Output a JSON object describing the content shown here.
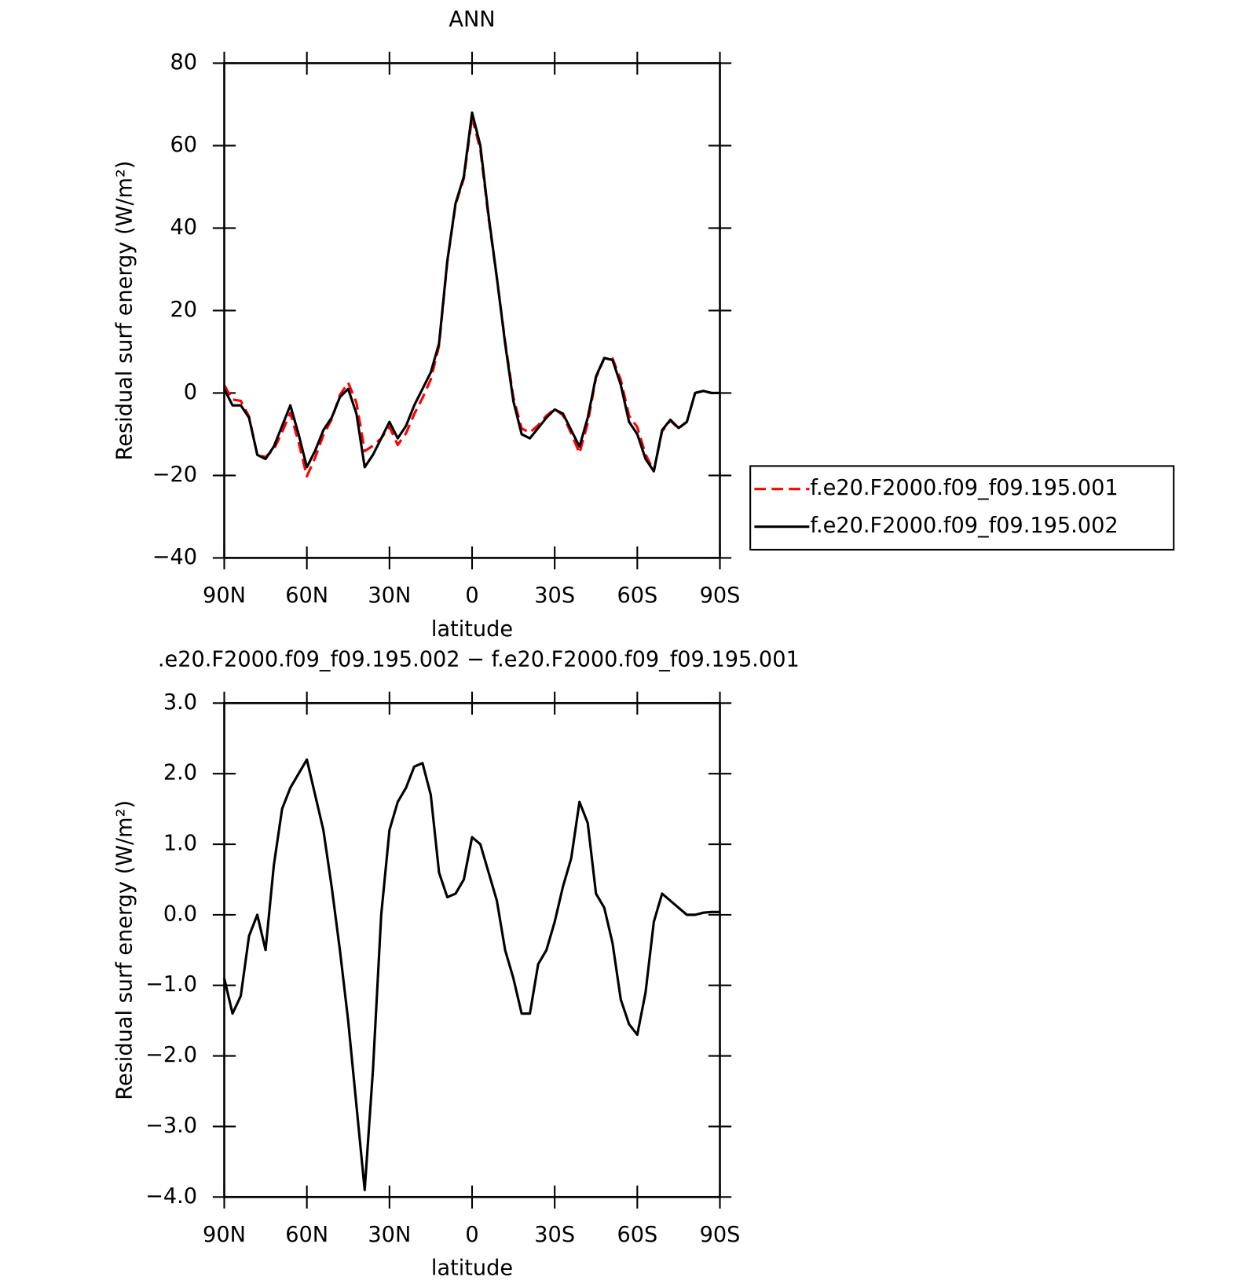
{
  "chart_data": [
    {
      "type": "line",
      "title": "ANN",
      "xlabel": "latitude",
      "ylabel": "Residual surf energy (W/m²)",
      "x": [
        90,
        87,
        84,
        81,
        78,
        75,
        72,
        69,
        66,
        63,
        60,
        57,
        54,
        51,
        48,
        45,
        42,
        39,
        36,
        33,
        30,
        27,
        24,
        21,
        18,
        15,
        12,
        9,
        6,
        3,
        0,
        -3,
        -6,
        -9,
        -12,
        -15,
        -18,
        -21,
        -24,
        -27,
        -30,
        -33,
        -36,
        -39,
        -42,
        -45,
        -48,
        -51,
        -54,
        -57,
        -60,
        -63,
        -66,
        -69,
        -72,
        -75,
        -78,
        -81,
        -84,
        -87,
        -90
      ],
      "series": [
        {
          "name": "f.e20.F2000.f09_f09.195.001",
          "color": "#ff0000",
          "linestyle": "dashed",
          "values": [
            1.9,
            -1.6,
            -1.9,
            -5.7,
            -15,
            -15.5,
            -13.7,
            -9.5,
            -4.8,
            -12,
            -20.2,
            -15.7,
            -10.2,
            -6.4,
            -0.5,
            2.5,
            -2.3,
            -14.1,
            -12.8,
            -11,
            -8.2,
            -12.6,
            -9.8,
            -5.1,
            -1.2,
            3.3,
            11.4,
            31.8,
            45.7,
            52,
            66.9,
            59,
            42.4,
            27.8,
            12.5,
            -1.1,
            -8.6,
            -9.6,
            -7.8,
            -5.5,
            -3.9,
            -5.4,
            -9.8,
            -14.6,
            -7.3,
            3.7,
            8.4,
            8.4,
            3.2,
            -5.5,
            -8.3,
            -14.9,
            -18.9,
            -9.3,
            -6.7,
            -8.6,
            -7,
            0,
            0.5,
            0,
            0
          ]
        },
        {
          "name": "f.e20.F2000.f09_f09.195.002",
          "color": "#000000",
          "linestyle": "solid",
          "values": [
            1,
            -3,
            -3,
            -6,
            -15,
            -16,
            -13,
            -8,
            -3,
            -10,
            -18,
            -14,
            -9,
            -6,
            -1,
            1,
            -5,
            -18,
            -15,
            -11,
            -7,
            -11,
            -8,
            -3,
            1,
            5,
            12,
            32,
            46,
            52.5,
            68,
            60,
            43,
            28,
            12,
            -2,
            -10,
            -11,
            -8.5,
            -6,
            -4,
            -5,
            -9,
            -13,
            -6,
            4,
            8.5,
            8,
            2,
            -7,
            -10,
            -16,
            -19,
            -9,
            -6.5,
            -8.5,
            -7,
            0,
            0.5,
            0,
            0
          ]
        }
      ],
      "xlim": [
        90,
        -90
      ],
      "xticks": [
        {
          "value": 90,
          "label": "90N"
        },
        {
          "value": 60,
          "label": "60N"
        },
        {
          "value": 30,
          "label": "30N"
        },
        0,
        {
          "value": -30,
          "label": "30S"
        },
        {
          "value": -60,
          "label": "60S"
        },
        {
          "value": -90,
          "label": "90S"
        }
      ],
      "ylim": [
        -40,
        80
      ],
      "yticks": [
        {
          "value": -40,
          "label": "−40"
        },
        {
          "value": -20,
          "label": "−20"
        },
        0,
        20,
        40,
        60,
        80
      ],
      "legend": "right"
    },
    {
      "type": "line",
      "title": ".e20.F2000.f09_f09.195.002 − f.e20.F2000.f09_f09.195.001",
      "xlabel": "latitude",
      "ylabel": "Residual surf energy (W/m²)",
      "x": [
        90,
        87,
        84,
        81,
        78,
        75,
        72,
        69,
        66,
        63,
        60,
        57,
        54,
        51,
        48,
        45,
        42,
        39,
        36,
        33,
        30,
        27,
        24,
        21,
        18,
        15,
        12,
        9,
        6,
        3,
        0,
        -3,
        -6,
        -9,
        -12,
        -15,
        -18,
        -21,
        -24,
        -27,
        -30,
        -33,
        -36,
        -39,
        -42,
        -45,
        -48,
        -51,
        -54,
        -57,
        -60,
        -63,
        -66,
        -69,
        -72,
        -75,
        -78,
        -81,
        -84,
        -87,
        -90
      ],
      "series": [
        {
          "color": "#000000",
          "linestyle": "solid",
          "values": [
            -0.9,
            -1.4,
            -1.15,
            -0.3,
            0,
            -0.5,
            0.7,
            1.5,
            1.8,
            2,
            2.2,
            1.7,
            1.2,
            0.4,
            -0.5,
            -1.5,
            -2.7,
            -3.9,
            -2.2,
            0,
            1.2,
            1.6,
            1.8,
            2.1,
            2.15,
            1.7,
            0.6,
            0.25,
            0.3,
            0.5,
            1.1,
            1,
            0.6,
            0.2,
            -0.5,
            -0.9,
            -1.4,
            -1.4,
            -0.7,
            -0.5,
            -0.1,
            0.4,
            0.8,
            1.6,
            1.3,
            0.3,
            0.1,
            -0.4,
            -1.2,
            -1.55,
            -1.7,
            -1.1,
            -0.1,
            0.3,
            0.2,
            0.1,
            0,
            0,
            0.03,
            0.04,
            0.04
          ]
        }
      ],
      "xlim": [
        90,
        -90
      ],
      "xticks": [
        {
          "value": 90,
          "label": "90N"
        },
        {
          "value": 60,
          "label": "60N"
        },
        {
          "value": 30,
          "label": "30N"
        },
        0,
        {
          "value": -30,
          "label": "30S"
        },
        {
          "value": -60,
          "label": "60S"
        },
        {
          "value": -90,
          "label": "90S"
        }
      ],
      "ylim": [
        -4,
        3
      ],
      "yticks": [
        {
          "value": -4,
          "label": "−4.0"
        },
        {
          "value": -3,
          "label": "−3.0"
        },
        {
          "value": -2,
          "label": "−2.0"
        },
        {
          "value": -1,
          "label": "−1.0"
        },
        {
          "value": 0,
          "label": "0.0"
        },
        {
          "value": 1,
          "label": "1.0"
        },
        {
          "value": 2,
          "label": "2.0"
        },
        {
          "value": 3,
          "label": "3.0"
        }
      ]
    }
  ]
}
